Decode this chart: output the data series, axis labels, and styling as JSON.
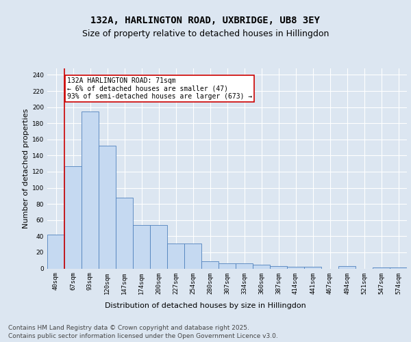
{
  "title_line1": "132A, HARLINGTON ROAD, UXBRIDGE, UB8 3EY",
  "title_line2": "Size of property relative to detached houses in Hillingdon",
  "xlabel": "Distribution of detached houses by size in Hillingdon",
  "ylabel": "Number of detached properties",
  "categories": [
    "40sqm",
    "67sqm",
    "93sqm",
    "120sqm",
    "147sqm",
    "174sqm",
    "200sqm",
    "227sqm",
    "254sqm",
    "280sqm",
    "307sqm",
    "334sqm",
    "360sqm",
    "387sqm",
    "414sqm",
    "441sqm",
    "467sqm",
    "494sqm",
    "521sqm",
    "547sqm",
    "574sqm"
  ],
  "values": [
    42,
    127,
    195,
    152,
    88,
    54,
    54,
    31,
    31,
    9,
    6,
    6,
    5,
    3,
    2,
    2,
    0,
    3,
    0,
    1,
    1
  ],
  "bar_color": "#c5d9f1",
  "bar_edge_color": "#4f81bd",
  "vline_color": "#cc0000",
  "vline_x_idx": 1,
  "annotation_text": "132A HARLINGTON ROAD: 71sqm\n← 6% of detached houses are smaller (47)\n93% of semi-detached houses are larger (673) →",
  "annotation_box_color": "#ffffff",
  "annotation_box_edge": "#cc0000",
  "ylim": [
    0,
    248
  ],
  "yticks": [
    0,
    20,
    40,
    60,
    80,
    100,
    120,
    140,
    160,
    180,
    200,
    220,
    240
  ],
  "bg_color": "#dce6f1",
  "footer_line1": "Contains HM Land Registry data © Crown copyright and database right 2025.",
  "footer_line2": "Contains public sector information licensed under the Open Government Licence v3.0.",
  "title_fontsize": 10,
  "subtitle_fontsize": 9,
  "tick_fontsize": 6.5,
  "ylabel_fontsize": 8,
  "xlabel_fontsize": 8,
  "footer_fontsize": 6.5,
  "annotation_fontsize": 7
}
